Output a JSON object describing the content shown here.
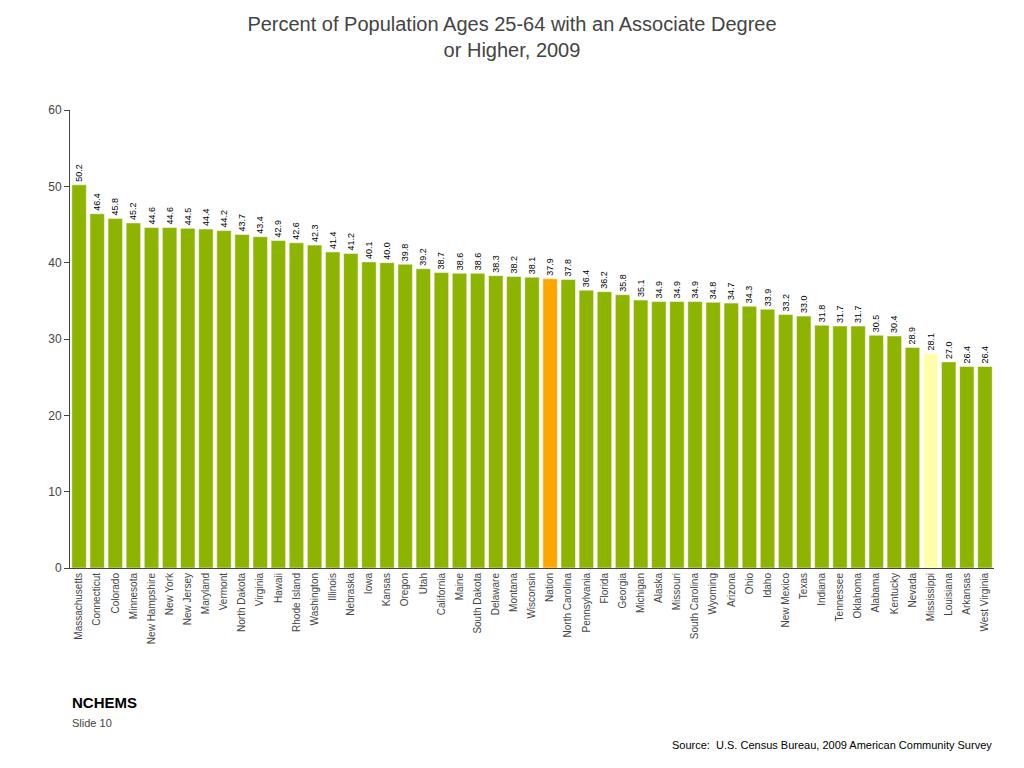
{
  "chart_data": {
    "type": "bar",
    "title": "Percent of Population Ages 25-64 with an Associate Degree",
    "subtitle": "or Higher, 2009",
    "annotations": [
      "Source:  U.S. Census Bureau, 2009 American Community Survey",
      "NCHEMS",
      "Slide 10"
    ],
    "categories": [
      "Massachusetts",
      "Connecticut",
      "Colorado",
      "Minnesota",
      "New Hampshire",
      "New York",
      "New Jersey",
      "Maryland",
      "Vermont",
      "North Dakota",
      "Virginia",
      "Hawaii",
      "Rhode Island",
      "Washington",
      "Illinois",
      "Nebraska",
      "Iowa",
      "Kansas",
      "Oregon",
      "Utah",
      "California",
      "Maine",
      "South Dakota",
      "Delaware",
      "Montana",
      "Wisconsin",
      "Nation",
      "North Carolina",
      "Pennsylvania",
      "Florida",
      "Georgia",
      "Michigan",
      "Alaska",
      "Missouri",
      "South Carolina",
      "Wyoming",
      "Arizona",
      "Ohio",
      "Idaho",
      "New Mexico",
      "Texas",
      "Indiana",
      "Tennessee",
      "Oklahoma",
      "Alabama",
      "Kentucky",
      "Nevada",
      "Mississippi",
      "Louisiana",
      "Arkansas",
      "West Virginia"
    ],
    "values": [
      50.2,
      46.4,
      45.8,
      45.2,
      44.6,
      44.6,
      44.5,
      44.4,
      44.2,
      43.7,
      43.4,
      42.9,
      42.6,
      42.3,
      41.4,
      41.2,
      40.1,
      40.0,
      39.8,
      39.2,
      38.7,
      38.6,
      38.6,
      38.3,
      38.2,
      38.1,
      37.9,
      37.8,
      36.4,
      36.2,
      35.8,
      35.1,
      34.9,
      34.9,
      34.9,
      34.8,
      34.7,
      34.3,
      33.9,
      33.2,
      33.0,
      31.8,
      31.7,
      31.7,
      30.5,
      30.4,
      28.9,
      28.1,
      27.0,
      26.4,
      26.4
    ],
    "value_labels": [
      "50.2",
      "46.4",
      "45.8",
      "45.2",
      "44.6",
      "44.6",
      "44.5",
      "44.4",
      "44.2",
      "43.7",
      "43.4",
      "42.9",
      "42.6",
      "42.3",
      "41.4",
      "41.2",
      "40.1",
      "40.0",
      "39.8",
      "39.2",
      "38.7",
      "38.6",
      "38.6",
      "38.3",
      "38.2",
      "38.1",
      "37.9",
      "37.8",
      "36.4",
      "36.2",
      "35.8",
      "35.1",
      "34.9",
      "34.9",
      "34.9",
      "34.8",
      "34.7",
      "34.3",
      "33.9",
      "33.2",
      "33.0",
      "31.8",
      "31.7",
      "31.7",
      "30.5",
      "30.4",
      "28.9",
      "28.1",
      "27.0",
      "26.4",
      "26.4"
    ],
    "colors": [
      "#8DB400",
      "#8DB400",
      "#8DB400",
      "#8DB400",
      "#8DB400",
      "#8DB400",
      "#8DB400",
      "#8DB400",
      "#8DB400",
      "#8DB400",
      "#8DB400",
      "#8DB400",
      "#8DB400",
      "#8DB400",
      "#8DB400",
      "#8DB400",
      "#8DB400",
      "#8DB400",
      "#8DB400",
      "#8DB400",
      "#8DB400",
      "#8DB400",
      "#8DB400",
      "#8DB400",
      "#8DB400",
      "#8DB400",
      "#FFA500",
      "#8DB400",
      "#8DB400",
      "#8DB400",
      "#8DB400",
      "#8DB400",
      "#8DB400",
      "#8DB400",
      "#8DB400",
      "#8DB400",
      "#8DB400",
      "#8DB400",
      "#8DB400",
      "#8DB400",
      "#8DB400",
      "#8DB400",
      "#8DB400",
      "#8DB400",
      "#8DB400",
      "#8DB400",
      "#8DB400",
      "#FFFFAA",
      "#8DB400",
      "#8DB400",
      "#8DB400"
    ],
    "ylim": [
      0,
      60
    ],
    "yticks": [
      0,
      10,
      20,
      30,
      40,
      50,
      60
    ],
    "grid": false,
    "data_labels": true
  }
}
